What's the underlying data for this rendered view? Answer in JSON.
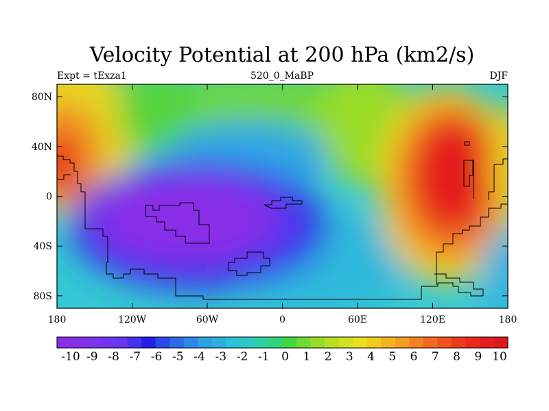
{
  "chart_data": {
    "type": "heatmap",
    "title": "Velocity Potential at 200 hPa (km2/s)",
    "left_label": "Expt = tExza1",
    "center_label": "520_0_MaBP",
    "right_label": "DJF",
    "x_range": [
      -180,
      180
    ],
    "y_range": [
      -90,
      90
    ],
    "x_ticks": [
      {
        "value": -180,
        "label": "180"
      },
      {
        "value": -120,
        "label": "120W"
      },
      {
        "value": -60,
        "label": "60W"
      },
      {
        "value": 0,
        "label": "0"
      },
      {
        "value": 60,
        "label": "60E"
      },
      {
        "value": 120,
        "label": "120E"
      },
      {
        "value": 180,
        "label": "180"
      }
    ],
    "y_ticks": [
      {
        "value": 80,
        "label": "80N"
      },
      {
        "value": 40,
        "label": "40N"
      },
      {
        "value": 0,
        "label": "0"
      },
      {
        "value": -40,
        "label": "40S"
      },
      {
        "value": -80,
        "label": "80S"
      }
    ],
    "colorbar": {
      "labels": [
        "-10",
        "-9",
        "-8",
        "-7",
        "-6",
        "-5",
        "-4",
        "-3",
        "-2",
        "-1",
        "0",
        "1",
        "2",
        "3",
        "4",
        "5",
        "6",
        "7",
        "8",
        "9",
        "10"
      ],
      "colors": [
        "#8a2ee8",
        "#8630ea",
        "#7e32ec",
        "#7434ee",
        "#6836f0",
        "#4a30ee",
        "#2020e6",
        "#2a4ae8",
        "#2e6ae8",
        "#2e86ea",
        "#2ea0e4",
        "#2cb0e0",
        "#2cc0da",
        "#2ec8c8",
        "#30d0a6",
        "#34d47a",
        "#40d840",
        "#70da30",
        "#98dc28",
        "#b8de20",
        "#d4e020",
        "#e8e020",
        "#f0cc20",
        "#f4b420",
        "#f49c20",
        "#f48220",
        "#f26a1e",
        "#f0521e",
        "#ee3a1c",
        "#ea2a1c",
        "#e41e1c",
        "#e0181c"
      ]
    },
    "field_centers": [
      {
        "lon": -72,
        "lat": -18,
        "value": -10
      },
      {
        "lon": -20,
        "lat": -40,
        "value": -7
      },
      {
        "lon": 125,
        "lat": 12,
        "value": 10
      },
      {
        "lon": -180,
        "lat": 28,
        "value": 9
      },
      {
        "lon": 180,
        "lat": 28,
        "value": 9
      },
      {
        "lon": -150,
        "lat": 80,
        "value": 4
      },
      {
        "lon": 150,
        "lat": 80,
        "value": 3
      }
    ]
  }
}
